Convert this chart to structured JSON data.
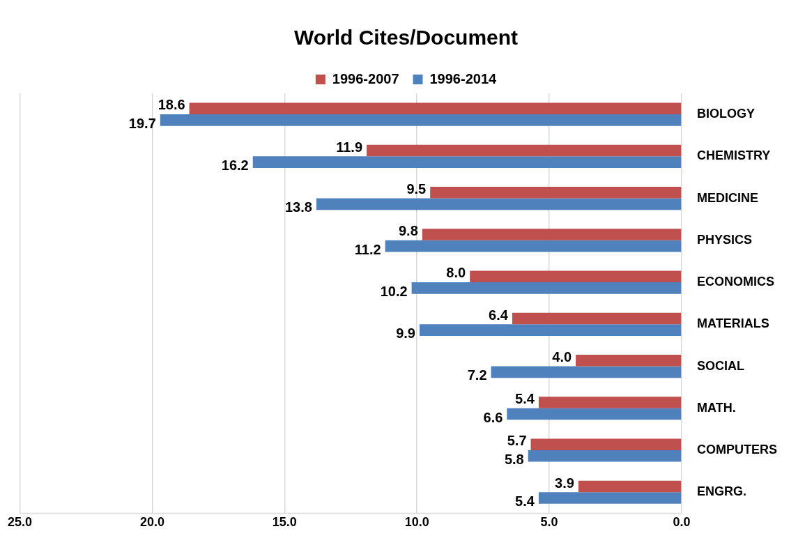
{
  "chart_data": {
    "type": "bar",
    "orientation": "horizontal",
    "title": "World Cites/Document",
    "categories": [
      "BIOLOGY",
      "CHEMISTRY",
      "MEDICINE",
      "PHYSICS",
      "ECONOMICS",
      "MATERIALS",
      "SOCIAL",
      "MATH.",
      "COMPUTERS",
      "ENGRG."
    ],
    "series": [
      {
        "name": "1996-2007",
        "color": "#c0504d",
        "values": [
          18.6,
          11.9,
          9.5,
          9.8,
          8.0,
          6.4,
          4.0,
          5.4,
          5.7,
          3.9
        ],
        "value_labels": [
          "18.6",
          "11.9",
          "9.5",
          "9.8",
          "8.0",
          "6.4",
          "4.0",
          "5.4",
          "5.7",
          "3.9"
        ]
      },
      {
        "name": "1996-2014",
        "color": "#4f81bd",
        "values": [
          19.7,
          16.2,
          13.8,
          11.2,
          10.2,
          9.9,
          7.2,
          6.6,
          5.8,
          5.4
        ],
        "value_labels": [
          "19.7",
          "16.2",
          "13.8",
          "11.2",
          "10.2",
          "9.9",
          "7.2",
          "6.6",
          "5.8",
          "5.4"
        ]
      }
    ],
    "xlim": [
      25,
      0
    ],
    "xticks": [
      {
        "value": 25,
        "label": "25.0"
      },
      {
        "value": 20,
        "label": "20.0"
      },
      {
        "value": 15,
        "label": "15.0"
      },
      {
        "value": 10,
        "label": "10.0"
      },
      {
        "value": 5,
        "label": "5.0"
      },
      {
        "value": 0,
        "label": "0.0"
      }
    ],
    "grid": "x",
    "legend": "top"
  }
}
